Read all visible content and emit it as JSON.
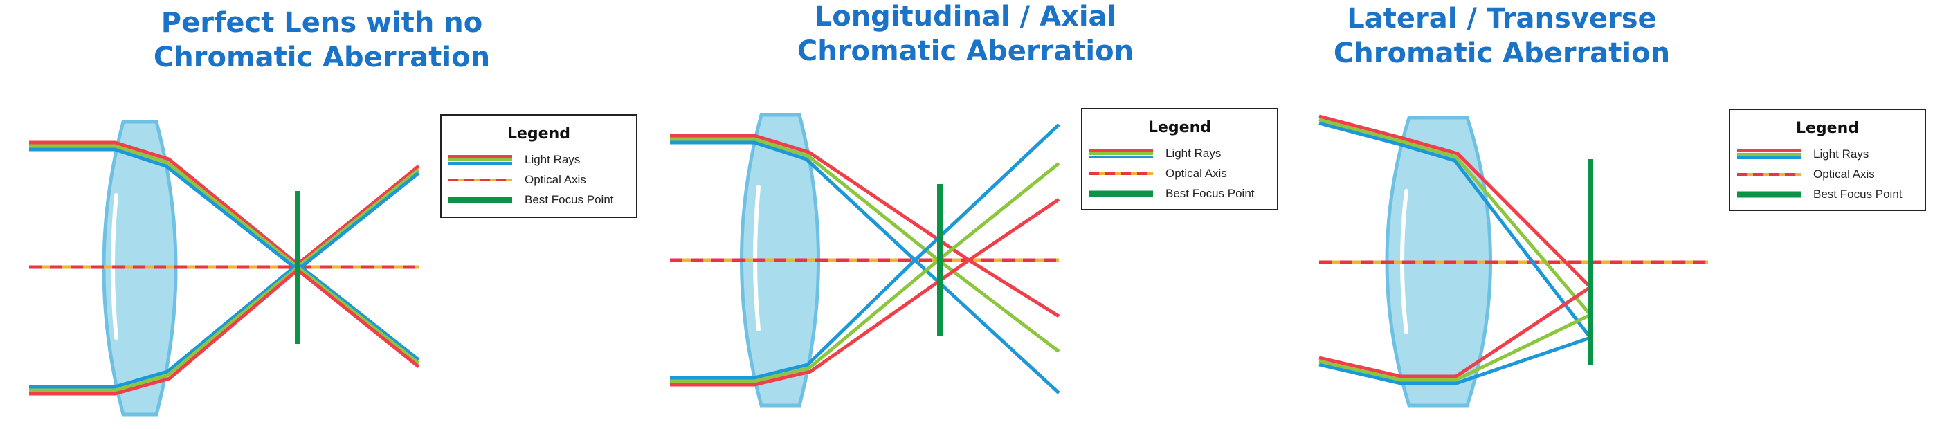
{
  "colors": {
    "title": "#1a73c6",
    "ray_red": "#ef3f4a",
    "ray_blue": "#1c98d8",
    "ray_green": "#8cc63f",
    "axis_red": "#e8353f",
    "axis_yellow": "#f2b233",
    "focus_green": "#0a9447",
    "lens_fill": "#a9dced",
    "lens_stroke": "#6fc1e3"
  },
  "panels": [
    {
      "id": "perfect",
      "title_line1": "Perfect Lens with no",
      "title_line2": "Chromatic Aberration",
      "legend": {
        "title": "Legend",
        "items": [
          {
            "label": "Light Rays",
            "icon": "light-rays-swatch"
          },
          {
            "label": "Optical Axis",
            "icon": "optical-axis-swatch"
          },
          {
            "label": "Best Focus Point",
            "icon": "best-focus-swatch"
          }
        ]
      }
    },
    {
      "id": "longitudinal",
      "title_line1": "Longitudinal / Axial",
      "title_line2": "Chromatic Aberration",
      "legend": {
        "title": "Legend",
        "items": [
          {
            "label": "Light Rays",
            "icon": "light-rays-swatch"
          },
          {
            "label": "Optical Axis",
            "icon": "optical-axis-swatch"
          },
          {
            "label": "Best Focus Point",
            "icon": "best-focus-swatch"
          }
        ]
      }
    },
    {
      "id": "lateral",
      "title_line1": "Lateral / Transverse",
      "title_line2": "Chromatic Aberration",
      "legend": {
        "title": "Legend",
        "items": [
          {
            "label": "Light Rays",
            "icon": "light-rays-swatch"
          },
          {
            "label": "Optical Axis",
            "icon": "optical-axis-swatch"
          },
          {
            "label": "Best Focus Point",
            "icon": "best-focus-swatch"
          }
        ]
      }
    }
  ]
}
